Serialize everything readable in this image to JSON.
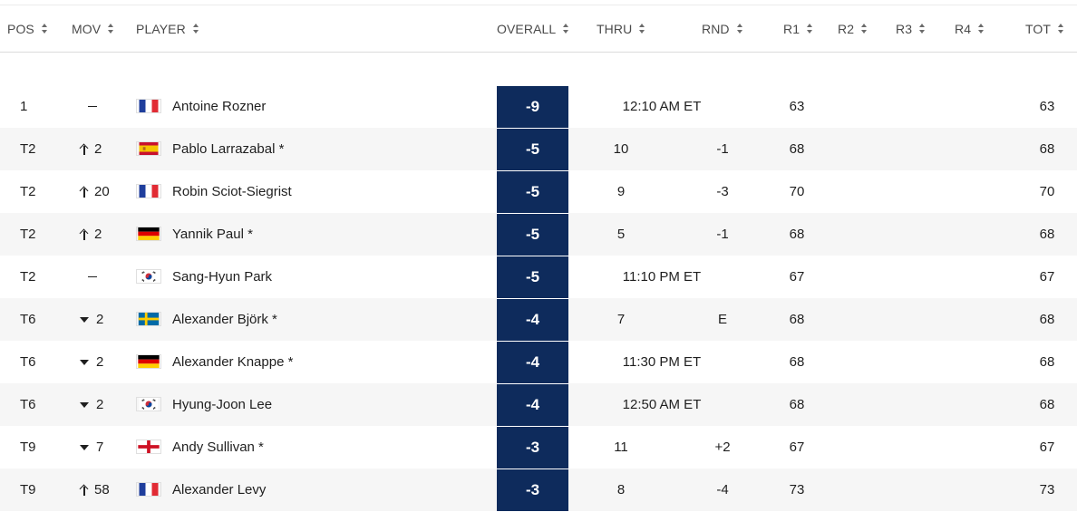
{
  "header": {
    "pos": "POS",
    "mov": "MOV",
    "player": "PLAYER",
    "overall": "OVERALL",
    "thru": "THRU",
    "rnd": "RND",
    "r1": "R1",
    "r2": "R2",
    "r3": "R3",
    "r4": "R4",
    "tot": "TOT"
  },
  "rows": [
    {
      "pos": "1",
      "mov_dir": "none",
      "mov": "",
      "flag": "france-flag-icon",
      "player": "Antoine Rozner",
      "overall": "-9",
      "thru": "12:10 AM ET",
      "rnd": "",
      "r1": "63",
      "tot": "63"
    },
    {
      "pos": "T2",
      "mov_dir": "up",
      "mov": "2",
      "flag": "spain-flag-icon",
      "player": "Pablo Larrazabal *",
      "overall": "-5",
      "thru": "10",
      "rnd": "-1",
      "r1": "68",
      "tot": "68"
    },
    {
      "pos": "T2",
      "mov_dir": "up",
      "mov": "20",
      "flag": "france-flag-icon",
      "player": "Robin Sciot-Siegrist",
      "overall": "-5",
      "thru": "9",
      "rnd": "-3",
      "r1": "70",
      "tot": "70"
    },
    {
      "pos": "T2",
      "mov_dir": "up",
      "mov": "2",
      "flag": "germany-flag-icon",
      "player": "Yannik Paul *",
      "overall": "-5",
      "thru": "5",
      "rnd": "-1",
      "r1": "68",
      "tot": "68"
    },
    {
      "pos": "T2",
      "mov_dir": "none",
      "mov": "",
      "flag": "korea-flag-icon",
      "player": "Sang-Hyun Park",
      "overall": "-5",
      "thru": "11:10 PM ET",
      "rnd": "",
      "r1": "67",
      "tot": "67"
    },
    {
      "pos": "T6",
      "mov_dir": "down",
      "mov": "2",
      "flag": "sweden-flag-icon",
      "player": "Alexander Björk *",
      "overall": "-4",
      "thru": "7",
      "rnd": "E",
      "r1": "68",
      "tot": "68"
    },
    {
      "pos": "T6",
      "mov_dir": "down",
      "mov": "2",
      "flag": "germany-flag-icon",
      "player": "Alexander Knappe *",
      "overall": "-4",
      "thru": "11:30 PM ET",
      "rnd": "",
      "r1": "68",
      "tot": "68"
    },
    {
      "pos": "T6",
      "mov_dir": "down",
      "mov": "2",
      "flag": "korea-flag-icon",
      "player": "Hyung-Joon Lee",
      "overall": "-4",
      "thru": "12:50 AM ET",
      "rnd": "",
      "r1": "68",
      "tot": "68"
    },
    {
      "pos": "T9",
      "mov_dir": "down",
      "mov": "7",
      "flag": "england-flag-icon",
      "player": "Andy Sullivan *",
      "overall": "-3",
      "thru": "11",
      "rnd": "+2",
      "r1": "67",
      "tot": "67"
    },
    {
      "pos": "T9",
      "mov_dir": "up",
      "mov": "58",
      "flag": "france-flag-icon",
      "player": "Alexander Levy",
      "overall": "-3",
      "thru": "8",
      "rnd": "-4",
      "r1": "73",
      "tot": "73"
    }
  ],
  "colors": {
    "overall_bg": "#0e2b5c",
    "row_alt": "#f6f6f6"
  }
}
